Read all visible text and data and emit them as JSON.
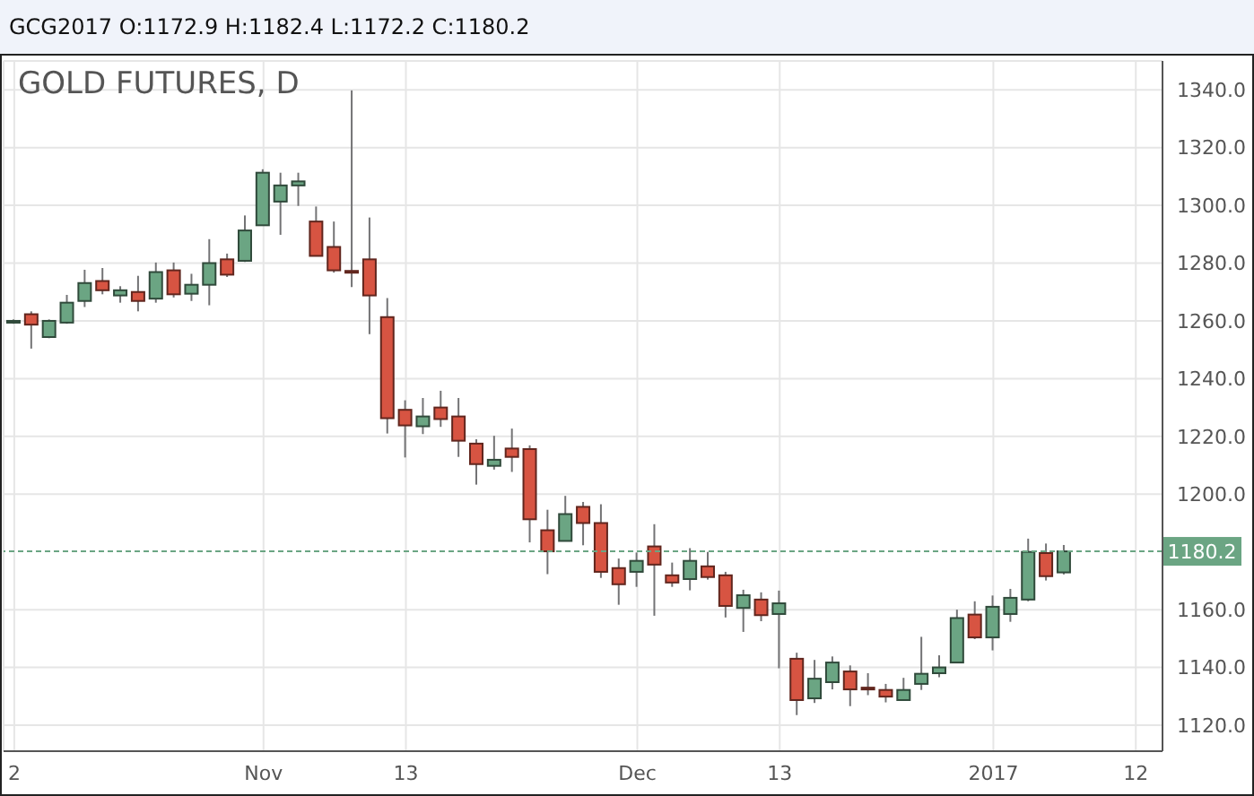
{
  "chart_data": {
    "type": "candlestick",
    "title": "GOLD FUTURES, D",
    "subtitle": "GCG2017 O:1172.9 H:1182.4 L:1172.2 C:1180.2",
    "categories": [
      "2",
      null,
      null,
      null,
      null,
      null,
      null,
      null,
      null,
      null,
      null,
      null,
      null,
      null,
      "Nov",
      null,
      null,
      null,
      null,
      null,
      null,
      null,
      "13",
      null,
      null,
      null,
      null,
      null,
      null,
      null,
      null,
      null,
      null,
      null,
      null,
      "Dec",
      null,
      null,
      null,
      null,
      null,
      null,
      null,
      "13",
      null,
      null,
      null,
      null,
      null,
      null,
      null,
      null,
      null,
      null,
      null,
      "2017",
      null,
      null,
      null,
      null,
      null,
      null,
      null,
      "12",
      null
    ],
    "ohlc": [
      [
        1259.5,
        1260.5,
        1259,
        1260
      ],
      [
        1262.3,
        1263.3,
        1250.4,
        1258.7
      ],
      [
        1254.4,
        1260.5,
        1254,
        1260
      ],
      [
        1259.4,
        1269,
        1259,
        1266.3
      ],
      [
        1266.9,
        1277.7,
        1264.8,
        1273.1
      ],
      [
        1273.8,
        1278.3,
        1269.2,
        1270.6
      ],
      [
        1268.8,
        1272,
        1266.3,
        1270.6
      ],
      [
        1270,
        1275.6,
        1263.3,
        1266.9
      ],
      [
        1267.7,
        1280.2,
        1266.3,
        1276.9
      ],
      [
        1277.5,
        1280.2,
        1268.1,
        1269.2
      ],
      [
        1269.4,
        1276.3,
        1266.9,
        1272.5
      ],
      [
        1272.5,
        1288.3,
        1265.4,
        1280
      ],
      [
        1281.3,
        1283.3,
        1275.2,
        1276
      ],
      [
        1280.8,
        1296.5,
        1280.4,
        1291.3
      ],
      [
        1293.1,
        1312.5,
        1293.1,
        1311.3
      ],
      [
        1301.3,
        1311.3,
        1289.8,
        1306.9
      ],
      [
        1306.9,
        1311.3,
        1299.8,
        1308.3
      ],
      [
        1294.4,
        1299.6,
        1282.5,
        1282.5
      ],
      [
        1285.6,
        1294.4,
        1276.7,
        1277.5
      ],
      [
        1277.3,
        1339.8,
        1271.7,
        1277
      ],
      [
        1281.3,
        1295.8,
        1255.4,
        1268.8
      ],
      [
        1261.3,
        1267.9,
        1221,
        1226.3
      ],
      [
        1229.2,
        1232.5,
        1212.7,
        1223.8
      ],
      [
        1223.5,
        1233.3,
        1220.8,
        1226.9
      ],
      [
        1230,
        1235.8,
        1223.3,
        1226
      ],
      [
        1226.9,
        1233.3,
        1212.9,
        1218.5
      ],
      [
        1217.5,
        1219,
        1203.3,
        1210.4
      ],
      [
        1209.8,
        1220.2,
        1208.5,
        1211.9
      ],
      [
        1215.8,
        1222.7,
        1207.7,
        1212.9
      ],
      [
        1215.6,
        1216.9,
        1183.3,
        1191.3
      ],
      [
        1187.5,
        1194.6,
        1172.3,
        1180.2
      ],
      [
        1183.8,
        1199.4,
        1183.8,
        1193.1
      ],
      [
        1195.6,
        1197.3,
        1182.3,
        1190
      ],
      [
        1190,
        1196.5,
        1171,
        1173.1
      ],
      [
        1174.4,
        1177.7,
        1161.7,
        1168.8
      ],
      [
        1173.1,
        1179.8,
        1167.9,
        1176.9
      ],
      [
        1181.9,
        1189.6,
        1157.9,
        1175.6
      ],
      [
        1171.9,
        1176.3,
        1167.9,
        1169.4
      ],
      [
        1170.6,
        1181.3,
        1166.7,
        1176.9
      ],
      [
        1175,
        1180,
        1170.4,
        1171.3
      ],
      [
        1171.9,
        1173.1,
        1157.3,
        1161.3
      ],
      [
        1160.6,
        1166.9,
        1152.3,
        1165
      ],
      [
        1163.5,
        1166,
        1156,
        1158.1
      ],
      [
        1158.5,
        1166.6,
        1139.7,
        1162.2
      ],
      [
        1143,
        1145.1,
        1123.5,
        1128.7
      ],
      [
        1129.3,
        1142.6,
        1127.7,
        1136.1
      ],
      [
        1134.9,
        1143.8,
        1132.4,
        1141.7
      ],
      [
        1138.6,
        1140.7,
        1126.6,
        1132.4
      ],
      [
        1133,
        1138,
        1130.4,
        1132.6
      ],
      [
        1132.2,
        1134.3,
        1127.9,
        1129.9
      ],
      [
        1128.7,
        1136.4,
        1128.7,
        1132.2
      ],
      [
        1134.3,
        1150.6,
        1132.2,
        1137.8
      ],
      [
        1138,
        1144.2,
        1136.6,
        1140
      ],
      [
        1141.7,
        1160,
        1141.7,
        1157.1
      ],
      [
        1158.3,
        1162.9,
        1149.8,
        1150.4
      ],
      [
        1150.4,
        1164.9,
        1145.9,
        1161
      ],
      [
        1158.5,
        1167.2,
        1155.8,
        1164.1
      ],
      [
        1163.5,
        1184.6,
        1162.9,
        1180
      ],
      [
        1179.6,
        1182.9,
        1170.1,
        1171.6
      ],
      [
        1172.9,
        1182.4,
        1172.2,
        1180.2
      ],
      null,
      null,
      null,
      null,
      null
    ],
    "colors": [
      "#6ba583",
      "#d75442",
      "#6ba583",
      "#6ba583",
      "#6ba583",
      "#d75442",
      "#6ba583",
      "#d75442",
      "#6ba583",
      "#d75442",
      "#6ba583",
      "#6ba583",
      "#d75442",
      "#6ba583",
      "#6ba583",
      "#6ba583",
      "#6ba583",
      "#d75442",
      "#d75442",
      "#d75442",
      "#d75442",
      "#d75442",
      "#d75442",
      "#6ba583",
      "#d75442",
      "#d75442",
      "#d75442",
      "#6ba583",
      "#d75442",
      "#d75442",
      "#d75442",
      "#6ba583",
      "#d75442",
      "#d75442",
      "#d75442",
      "#6ba583",
      "#d75442",
      "#d75442",
      "#6ba583",
      "#d75442",
      "#d75442",
      "#6ba583",
      "#d75442",
      "#6ba583",
      "#d75442",
      "#6ba583",
      "#6ba583",
      "#d75442",
      "#d75442",
      "#d75442",
      "#6ba583",
      "#6ba583",
      "#6ba583",
      "#6ba583",
      "#d75442",
      "#6ba583",
      "#6ba583",
      "#6ba583",
      "#d75442",
      "#6ba583",
      null,
      null,
      null,
      null,
      null
    ],
    "ylim": [
      1111,
      1350
    ],
    "yticks": [
      {
        "value": 1120,
        "label": "1120.0"
      },
      {
        "value": 1140,
        "label": "1140.0"
      },
      {
        "value": 1160,
        "label": "1160.0"
      },
      {
        "value": 1200,
        "label": "1200.0"
      },
      {
        "value": 1220,
        "label": "1220.0"
      },
      {
        "value": 1240,
        "label": "1240.0"
      },
      {
        "value": 1260,
        "label": "1260.0"
      },
      {
        "value": 1280,
        "label": "1280.0"
      },
      {
        "value": 1300,
        "label": "1300.0"
      },
      {
        "value": 1320,
        "label": "1320.0"
      },
      {
        "value": 1340,
        "label": "1340.0"
      }
    ],
    "ref_lines": [
      {
        "axis": "y",
        "value": 1180.2,
        "label": "1180.2",
        "color": "#6ba583",
        "line_style": "dashed"
      }
    ],
    "grid": true
  }
}
